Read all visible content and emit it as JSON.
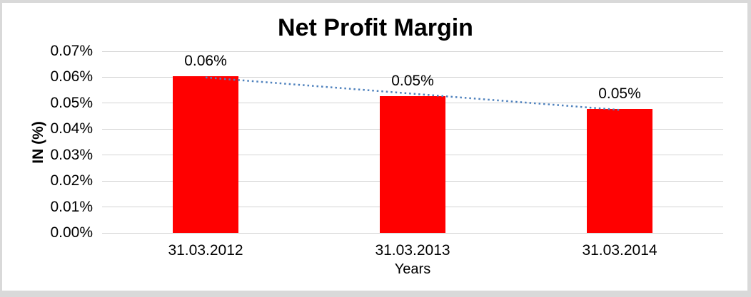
{
  "window": {
    "background_color": "#FFFFFF",
    "frame_color": "#D9D9D9"
  },
  "chart_data": {
    "type": "bar",
    "title": "Net Profit Margin",
    "xlabel": "Years",
    "ylabel": "IN (%)",
    "categories": [
      "31.03.2012",
      "31.03.2013",
      "31.03.2014"
    ],
    "series": [
      {
        "name": "Net Profit Margin",
        "color": "#FF0000",
        "values": [
          0.0603,
          0.0527,
          0.0478
        ],
        "data_labels": [
          "0.06%",
          "0.05%",
          "0.05%"
        ]
      }
    ],
    "ylim": [
      0,
      0.07
    ],
    "y_tick_step": 0.01,
    "y_tick_labels": [
      "0.00%",
      "0.01%",
      "0.02%",
      "0.03%",
      "0.04%",
      "0.05%",
      "0.06%",
      "0.07%"
    ],
    "grid": true,
    "gridline_color": "#D4D4D4",
    "legend": "none",
    "trendline": {
      "type": "linear",
      "style": "dotted",
      "color": "#4E81BD",
      "endpoint_values": [
        0.0599,
        0.0474
      ]
    }
  }
}
